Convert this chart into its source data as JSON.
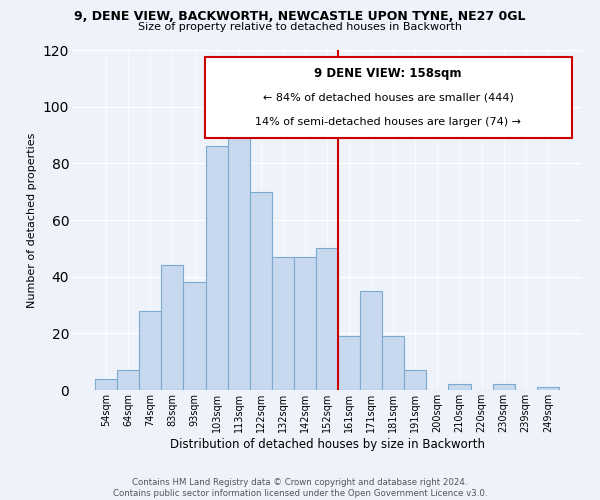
{
  "title": "9, DENE VIEW, BACKWORTH, NEWCASTLE UPON TYNE, NE27 0GL",
  "subtitle": "Size of property relative to detached houses in Backworth",
  "xlabel": "Distribution of detached houses by size in Backworth",
  "ylabel": "Number of detached properties",
  "bar_labels": [
    "54sqm",
    "64sqm",
    "74sqm",
    "83sqm",
    "93sqm",
    "103sqm",
    "113sqm",
    "122sqm",
    "132sqm",
    "142sqm",
    "152sqm",
    "161sqm",
    "171sqm",
    "181sqm",
    "191sqm",
    "200sqm",
    "210sqm",
    "220sqm",
    "230sqm",
    "239sqm",
    "249sqm"
  ],
  "bar_values": [
    4,
    7,
    28,
    44,
    38,
    86,
    94,
    70,
    47,
    47,
    50,
    19,
    35,
    19,
    7,
    0,
    2,
    0,
    2,
    0,
    1
  ],
  "bar_color": "#c8d8ee",
  "bar_edge_color": "#7aaad0",
  "vline_color": "#cc0000",
  "annotation_title": "9 DENE VIEW: 158sqm",
  "annotation_line1": "← 84% of detached houses are smaller (444)",
  "annotation_line2": "14% of semi-detached houses are larger (74) →",
  "annotation_box_color": "#ffffff",
  "annotation_box_edge": "#cc0000",
  "ylim": [
    0,
    120
  ],
  "yticks": [
    0,
    20,
    40,
    60,
    80,
    100,
    120
  ],
  "footer_line1": "Contains HM Land Registry data © Crown copyright and database right 2024.",
  "footer_line2": "Contains public sector information licensed under the Open Government Licence v3.0.",
  "bg_color": "#eef2fa"
}
